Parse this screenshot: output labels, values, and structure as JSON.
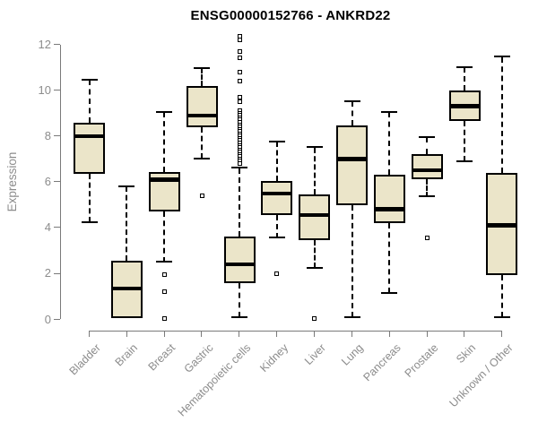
{
  "chart_data": {
    "type": "box",
    "title": "ENSG00000152766 - ANKRD22",
    "ylabel": "Expression",
    "xlabel": "",
    "ylim": [
      0,
      12
    ],
    "yticks": [
      0,
      2,
      4,
      6,
      8,
      10,
      12
    ],
    "grid": false,
    "legend": null,
    "categories": [
      "Bladder",
      "Brain",
      "Breast",
      "Gastric",
      "Hematopoietic cells",
      "Kidney",
      "Liver",
      "Lung",
      "Pancreas",
      "Prostate",
      "Skin",
      "Unknown / Other"
    ],
    "series": [
      {
        "name": "Bladder",
        "whisker_low": 4.25,
        "q1": 6.35,
        "median": 8.0,
        "q3": 8.6,
        "whisker_high": 10.45,
        "outliers": []
      },
      {
        "name": "Brain",
        "whisker_low": 0.05,
        "q1": 0.05,
        "median": 1.35,
        "q3": 2.55,
        "whisker_high": 5.8,
        "outliers": []
      },
      {
        "name": "Breast",
        "whisker_low": 2.5,
        "q1": 4.7,
        "median": 6.1,
        "q3": 6.45,
        "whisker_high": 9.05,
        "outliers": [
          1.95,
          1.2,
          0.05
        ]
      },
      {
        "name": "Gastric",
        "whisker_low": 7.0,
        "q1": 8.4,
        "median": 8.9,
        "q3": 10.2,
        "whisker_high": 10.95,
        "outliers": [
          5.4
        ]
      },
      {
        "name": "Hematopoietic cells",
        "whisker_low": 0.1,
        "q1": 1.6,
        "median": 2.4,
        "q3": 3.6,
        "whisker_high": 6.6,
        "outliers": [
          12.35,
          12.2,
          11.7,
          11.4,
          10.8,
          10.4,
          9.7,
          9.5,
          9.1,
          9.0,
          8.9,
          8.8,
          8.7,
          8.6,
          8.5,
          8.4,
          8.3,
          8.2,
          8.1,
          8.0,
          7.9,
          7.8,
          7.7,
          7.6,
          7.5,
          7.4,
          7.3,
          7.2,
          7.1,
          7.0,
          6.9,
          6.8
        ]
      },
      {
        "name": "Kidney",
        "whisker_low": 3.55,
        "q1": 4.55,
        "median": 5.5,
        "q3": 6.05,
        "whisker_high": 7.75,
        "outliers": [
          2.0
        ]
      },
      {
        "name": "Liver",
        "whisker_low": 2.25,
        "q1": 3.45,
        "median": 4.55,
        "q3": 5.45,
        "whisker_high": 7.5,
        "outliers": [
          0.05
        ]
      },
      {
        "name": "Lung",
        "whisker_low": 0.1,
        "q1": 5.0,
        "median": 7.0,
        "q3": 8.45,
        "whisker_high": 9.5,
        "outliers": []
      },
      {
        "name": "Pancreas",
        "whisker_low": 1.15,
        "q1": 4.2,
        "median": 4.8,
        "q3": 6.3,
        "whisker_high": 9.05,
        "outliers": []
      },
      {
        "name": "Prostate",
        "whisker_low": 5.35,
        "q1": 6.1,
        "median": 6.5,
        "q3": 7.2,
        "whisker_high": 7.95,
        "outliers": [
          3.55
        ]
      },
      {
        "name": "Skin",
        "whisker_low": 6.9,
        "q1": 8.65,
        "median": 9.3,
        "q3": 10.0,
        "whisker_high": 11.0,
        "outliers": []
      },
      {
        "name": "Unknown / Other",
        "whisker_low": 0.1,
        "q1": 1.95,
        "median": 4.1,
        "q3": 6.4,
        "whisker_high": 11.45,
        "outliers": []
      }
    ]
  },
  "colors": {
    "background": "#ffffff",
    "box_fill": "#EBE5C9",
    "box_border": "#000000",
    "median": "#000000",
    "whisker": "#000000",
    "axis": "#7a7a7a",
    "tick_labels": "#8c8c8c",
    "title": "#000000"
  }
}
